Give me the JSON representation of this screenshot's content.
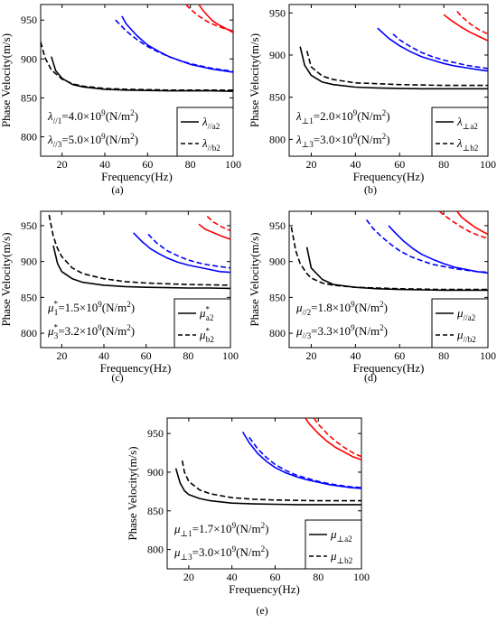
{
  "chart_data": [
    {
      "type": "line",
      "caption": "(a)",
      "xlabel": "Frequency(Hz)",
      "ylabel": "Phase Velocity(m/s)",
      "xlim": [
        10,
        100
      ],
      "ylim": [
        775,
        970
      ],
      "xticks": [
        "20",
        "40",
        "60",
        "80",
        "100"
      ],
      "yticks": [
        "800",
        "850",
        "900",
        "950"
      ],
      "params": [
        {
          "sym": "λ",
          "sub": "//1",
          "text": "=4.0×10",
          "exp": "9",
          "unit": "(N/m",
          "unitExp": "2",
          "close": ")"
        },
        {
          "sym": "λ",
          "sub": "//3",
          "text": "=5.0×10",
          "exp": "9",
          "unit": "(N/m",
          "unitExp": "2",
          "close": ")"
        }
      ],
      "legend": [
        {
          "style": "solid",
          "sym": "λ",
          "sub": "//a2"
        },
        {
          "style": "dashed",
          "sym": "λ",
          "sub": "//b2"
        }
      ],
      "series": [
        {
          "color": "#000000",
          "dash": false,
          "x": [
            15,
            17,
            20,
            25,
            30,
            40,
            50,
            60,
            70,
            80,
            90,
            100
          ],
          "y": [
            903,
            885,
            875,
            867,
            864,
            861,
            860,
            859.5,
            859,
            859,
            859,
            858.5
          ]
        },
        {
          "color": "#000000",
          "dash": true,
          "x": [
            10,
            12,
            15,
            20,
            25,
            30,
            40,
            50,
            60,
            70,
            80,
            90,
            100
          ],
          "y": [
            922,
            902,
            886,
            874,
            868,
            865,
            862,
            861,
            860.5,
            860,
            860,
            860,
            860
          ]
        },
        {
          "color": "#0000ff",
          "dash": false,
          "x": [
            48,
            50,
            55,
            60,
            65,
            70,
            75,
            80,
            85,
            90,
            95,
            100
          ],
          "y": [
            955,
            945,
            930,
            918,
            910,
            903,
            898,
            893,
            890,
            887,
            885,
            883
          ]
        },
        {
          "color": "#0000ff",
          "dash": true,
          "x": [
            45,
            50,
            55,
            60,
            65,
            70,
            75,
            80,
            85,
            90,
            95,
            100
          ],
          "y": [
            950,
            936,
            925,
            916,
            909,
            903,
            898,
            894,
            891,
            888,
            886,
            884
          ]
        },
        {
          "color": "#ff0000",
          "dash": false,
          "x": [
            84,
            86,
            88,
            90,
            92,
            94,
            96,
            98,
            100
          ],
          "y": [
            970,
            962,
            956,
            950,
            946,
            943,
            940,
            937,
            934
          ]
        },
        {
          "color": "#ff0000",
          "dash": true,
          "x": [
            78,
            80,
            84,
            88,
            92,
            96,
            100
          ],
          "y": [
            970,
            964,
            955,
            948,
            943,
            939,
            936
          ]
        }
      ]
    },
    {
      "type": "line",
      "caption": "(b)",
      "xlabel": "Frequency(Hz)",
      "ylabel": "Phase Velocity(m/s)",
      "xlim": [
        10,
        100
      ],
      "ylim": [
        780,
        960
      ],
      "xticks": [
        "20",
        "40",
        "60",
        "80",
        "100"
      ],
      "yticks": [
        "800",
        "850",
        "900",
        "950"
      ],
      "params": [
        {
          "sym": "λ",
          "sub": "⊥1",
          "text": "=2.0×10",
          "exp": "9",
          "unit": "(N/m",
          "unitExp": "2",
          "close": ")"
        },
        {
          "sym": "λ",
          "sub": "⊥3",
          "text": "=3.0×10",
          "exp": "9",
          "unit": "(N/m",
          "unitExp": "2",
          "close": ")"
        }
      ],
      "legend": [
        {
          "style": "solid",
          "sym": "λ",
          "sub": "⊥a2"
        },
        {
          "style": "dashed",
          "sym": "λ",
          "sub": "⊥b2"
        }
      ],
      "series": [
        {
          "color": "#000000",
          "dash": false,
          "x": [
            15,
            17,
            20,
            25,
            30,
            40,
            50,
            60,
            70,
            80,
            90,
            100
          ],
          "y": [
            910,
            888,
            876,
            868,
            865,
            862,
            861,
            860.5,
            860,
            860,
            860,
            860
          ]
        },
        {
          "color": "#000000",
          "dash": true,
          "x": [
            18,
            20,
            25,
            30,
            40,
            50,
            60,
            70,
            80,
            90,
            100
          ],
          "y": [
            905,
            886,
            875,
            871,
            867,
            866,
            865,
            864.5,
            864,
            864,
            864
          ]
        },
        {
          "color": "#0000ff",
          "dash": false,
          "x": [
            50,
            55,
            60,
            65,
            70,
            75,
            80,
            85,
            90,
            95,
            100
          ],
          "y": [
            932,
            920,
            911,
            904,
            898,
            894,
            890,
            887,
            885,
            883,
            881
          ]
        },
        {
          "color": "#0000ff",
          "dash": true,
          "x": [
            57,
            60,
            65,
            70,
            75,
            80,
            85,
            90,
            95,
            100
          ],
          "y": [
            925,
            918,
            910,
            903,
            898,
            894,
            891,
            888,
            886,
            884
          ]
        },
        {
          "color": "#ff0000",
          "dash": false,
          "x": [
            80,
            84,
            88,
            92,
            96,
            100
          ],
          "y": [
            948,
            940,
            933,
            927,
            922,
            917
          ]
        },
        {
          "color": "#ff0000",
          "dash": true,
          "x": [
            86,
            88,
            92,
            96,
            100
          ],
          "y": [
            952,
            946,
            937,
            930,
            925
          ]
        }
      ]
    },
    {
      "type": "line",
      "caption": "(c)",
      "xlabel": "Frequency(Hz)",
      "ylabel": "Phase Velocity(m/s)",
      "xlim": [
        10,
        100
      ],
      "ylim": [
        780,
        970
      ],
      "xticks": [
        "20",
        "40",
        "60",
        "80",
        "100"
      ],
      "yticks": [
        "800",
        "850",
        "900",
        "950"
      ],
      "params": [
        {
          "sym": "μ",
          "sub": "1",
          "sup": "*",
          "text": "=1.5×10",
          "exp": "9",
          "unit": "(N/m",
          "unitExp": "2",
          "close": ")"
        },
        {
          "sym": "μ",
          "sub": "3",
          "sup": "*",
          "text": "=3.2×10",
          "exp": "9",
          "unit": "(N/m",
          "unitExp": "2",
          "close": ")"
        }
      ],
      "legend": [
        {
          "style": "solid",
          "sym": "μ",
          "sub": "a2",
          "sup": "*"
        },
        {
          "style": "dashed",
          "sym": "μ",
          "sub": "b2",
          "sup": "*"
        }
      ],
      "series": [
        {
          "color": "#000000",
          "dash": false,
          "x": [
            16,
            18,
            20,
            25,
            30,
            40,
            50,
            60,
            70,
            80,
            90,
            100
          ],
          "y": [
            922,
            897,
            886,
            876,
            871,
            867,
            865,
            864,
            863.5,
            863,
            863,
            862.5
          ]
        },
        {
          "color": "#000000",
          "dash": true,
          "x": [
            14,
            16,
            18,
            20,
            25,
            30,
            40,
            50,
            60,
            70,
            80,
            90,
            100
          ],
          "y": [
            965,
            935,
            918,
            907,
            891,
            883,
            876,
            872,
            870,
            869,
            868,
            867.5,
            867
          ]
        },
        {
          "color": "#0000ff",
          "dash": false,
          "x": [
            54,
            58,
            62,
            66,
            70,
            75,
            80,
            85,
            90,
            95,
            100
          ],
          "y": [
            940,
            928,
            918,
            911,
            905,
            899,
            895,
            892,
            889,
            886,
            885
          ]
        },
        {
          "color": "#0000ff",
          "dash": true,
          "x": [
            61,
            65,
            70,
            75,
            80,
            85,
            90,
            95,
            100
          ],
          "y": [
            938,
            926,
            915,
            908,
            902,
            898,
            895,
            893,
            891
          ]
        },
        {
          "color": "#ff0000",
          "dash": false,
          "x": [
            85,
            88,
            92,
            96,
            100
          ],
          "y": [
            952,
            945,
            940,
            935,
            931
          ]
        },
        {
          "color": "#ff0000",
          "dash": true,
          "x": [
            89,
            92,
            96,
            100
          ],
          "y": [
            963,
            955,
            948,
            943
          ]
        }
      ]
    },
    {
      "type": "line",
      "caption": "(d)",
      "xlabel": "Frequency(Hz)",
      "ylabel": "Phase Velocity(m/s)",
      "xlim": [
        10,
        100
      ],
      "ylim": [
        780,
        970
      ],
      "xticks": [
        "20",
        "40",
        "60",
        "80",
        "100"
      ],
      "yticks": [
        "800",
        "850",
        "900",
        "950"
      ],
      "params": [
        {
          "sym": "μ",
          "sub": "//2",
          "text": "=1.8×10",
          "exp": "9",
          "unit": "(N/m",
          "unitExp": "2",
          "close": ")"
        },
        {
          "sym": "μ",
          "sub": "//3",
          "text": "=3.3×10",
          "exp": "9",
          "unit": "(N/m",
          "unitExp": "2",
          "close": ")"
        }
      ],
      "legend": [
        {
          "style": "solid",
          "sym": "μ",
          "sub": "//a2"
        },
        {
          "style": "dashed",
          "sym": "μ",
          "sub": "//b2"
        }
      ],
      "series": [
        {
          "color": "#000000",
          "dash": false,
          "x": [
            18,
            20,
            25,
            30,
            40,
            50,
            60,
            70,
            80,
            90,
            100
          ],
          "y": [
            920,
            891,
            875,
            868,
            864,
            862,
            861,
            860.5,
            860,
            860,
            860
          ]
        },
        {
          "color": "#000000",
          "dash": true,
          "x": [
            11,
            13,
            15,
            18,
            20,
            25,
            30,
            40,
            50,
            60,
            70,
            80,
            90,
            100
          ],
          "y": [
            948,
            915,
            897,
            883,
            877,
            870,
            867,
            864,
            863,
            862,
            861.5,
            861,
            861,
            861
          ]
        },
        {
          "color": "#0000ff",
          "dash": false,
          "x": [
            55,
            58,
            62,
            66,
            70,
            75,
            80,
            85,
            90,
            95,
            100
          ],
          "y": [
            950,
            940,
            928,
            918,
            910,
            903,
            897,
            892,
            889,
            886,
            884
          ]
        },
        {
          "color": "#0000ff",
          "dash": true,
          "x": [
            45,
            48,
            52,
            56,
            60,
            65,
            70,
            75,
            80,
            85,
            90,
            95,
            100
          ],
          "y": [
            958,
            946,
            934,
            924,
            915,
            907,
            901,
            896,
            893,
            890,
            888,
            886,
            885
          ]
        },
        {
          "color": "#ff0000",
          "dash": false,
          "x": [
            86,
            88,
            90,
            94,
            98,
            100
          ],
          "y": [
            970,
            962,
            957,
            948,
            941,
            938
          ]
        },
        {
          "color": "#ff0000",
          "dash": true,
          "x": [
            78,
            80,
            84,
            88,
            92,
            96,
            100
          ],
          "y": [
            970,
            965,
            956,
            948,
            941,
            936,
            932
          ]
        }
      ]
    },
    {
      "type": "line",
      "caption": "(e)",
      "xlabel": "Frequency(Hz)",
      "ylabel": "Phase Velocity(m/s)",
      "xlim": [
        10,
        100
      ],
      "ylim": [
        775,
        970
      ],
      "xticks": [
        "20",
        "40",
        "60",
        "80",
        "100"
      ],
      "yticks": [
        "800",
        "850",
        "900",
        "950"
      ],
      "params": [
        {
          "sym": "μ",
          "sub": "⊥1",
          "text": "=1.7×10",
          "exp": "9",
          "unit": "(N/m",
          "unitExp": "2",
          "close": ")"
        },
        {
          "sym": "μ",
          "sub": "⊥3",
          "text": "=3.0×10",
          "exp": "9",
          "unit": "(N/m",
          "unitExp": "2",
          "close": ")"
        }
      ],
      "legend": [
        {
          "style": "solid",
          "sym": "μ",
          "sub": "⊥a2"
        },
        {
          "style": "dashed",
          "sym": "μ",
          "sub": "⊥b2"
        }
      ],
      "series": [
        {
          "color": "#000000",
          "dash": false,
          "x": [
            14,
            16,
            18,
            20,
            25,
            30,
            40,
            50,
            60,
            70,
            80,
            90,
            100
          ],
          "y": [
            905,
            886,
            876,
            871,
            866,
            863,
            860,
            859,
            858.5,
            858,
            858,
            858,
            858
          ]
        },
        {
          "color": "#000000",
          "dash": true,
          "x": [
            17,
            18,
            20,
            25,
            30,
            40,
            50,
            60,
            70,
            80,
            90,
            100
          ],
          "y": [
            915,
            900,
            888,
            877,
            872,
            867,
            865,
            864,
            863.5,
            863,
            863,
            863
          ]
        },
        {
          "color": "#0000ff",
          "dash": false,
          "x": [
            45,
            48,
            52,
            56,
            60,
            65,
            70,
            75,
            80,
            85,
            90,
            95,
            100
          ],
          "y": [
            952,
            938,
            924,
            914,
            906,
            899,
            894,
            890,
            887,
            884,
            882,
            880,
            879
          ]
        },
        {
          "color": "#0000ff",
          "dash": true,
          "x": [
            48,
            52,
            56,
            60,
            65,
            70,
            75,
            80,
            85,
            90,
            95,
            100
          ],
          "y": [
            945,
            930,
            919,
            910,
            902,
            896,
            892,
            888,
            885,
            883,
            881,
            880
          ]
        },
        {
          "color": "#ff0000",
          "dash": false,
          "x": [
            74,
            76,
            80,
            84,
            88,
            92,
            96,
            100
          ],
          "y": [
            970,
            962,
            950,
            940,
            932,
            926,
            920,
            916
          ]
        },
        {
          "color": "#ff0000",
          "dash": true,
          "x": [
            78,
            80,
            84,
            88,
            92,
            96,
            100
          ],
          "y": [
            970,
            962,
            950,
            940,
            932,
            925,
            920
          ]
        }
      ]
    }
  ]
}
